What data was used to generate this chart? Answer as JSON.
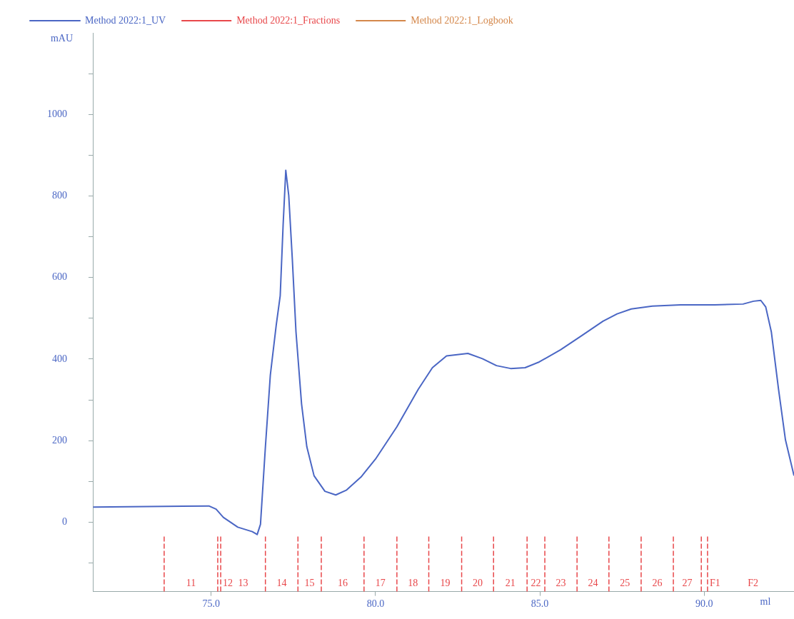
{
  "chart_data": {
    "type": "line",
    "xlabel": "ml",
    "ylabel": "mAU",
    "xlim": [
      71.4,
      92.73
    ],
    "ylim": [
      -170,
      1200
    ],
    "xticks": [
      {
        "value": 75,
        "label": "75.0"
      },
      {
        "value": 80,
        "label": "80.0"
      },
      {
        "value": 85,
        "label": "85.0"
      },
      {
        "value": 90,
        "label": "90.0"
      }
    ],
    "yticks": [
      {
        "value": -100,
        "label": null
      },
      0,
      {
        "value": 100,
        "label": null
      },
      200,
      {
        "value": 300,
        "label": null
      },
      400,
      {
        "value": 500,
        "label": null
      },
      600,
      {
        "value": 700,
        "label": null
      },
      800,
      {
        "value": 900,
        "label": null
      },
      1000,
      {
        "value": 1100,
        "label": null
      }
    ],
    "grid": false,
    "legend": "top",
    "marker": "none",
    "series": [
      {
        "name": "Method 2022:1_UV",
        "color": "#4a66c4",
        "line_style": "solid",
        "x": [
          71.41,
          74.93,
          75.15,
          75.37,
          75.81,
          76.25,
          76.4,
          76.5,
          76.65,
          76.8,
          76.98,
          77.1,
          77.19,
          77.27,
          77.36,
          77.47,
          77.58,
          77.75,
          77.91,
          78.13,
          78.46,
          78.79,
          79.12,
          79.56,
          80.0,
          80.65,
          81.3,
          81.73,
          82.16,
          82.81,
          83.25,
          83.68,
          84.11,
          84.55,
          84.98,
          85.63,
          86.28,
          86.92,
          87.35,
          87.78,
          88.42,
          89.28,
          90.32,
          91.18,
          91.5,
          91.72,
          91.87,
          92.04,
          92.26,
          92.47,
          92.73
        ],
        "values": [
          37,
          40,
          32,
          12,
          -12,
          -23,
          -30,
          -5,
          185,
          361,
          484,
          555,
          731,
          863,
          801,
          643,
          467,
          290,
          185,
          114,
          76,
          67,
          79,
          111,
          155,
          234,
          326,
          379,
          408,
          414,
          401,
          384,
          377,
          379,
          393,
          423,
          458,
          493,
          511,
          523,
          530,
          533,
          533,
          535,
          542,
          544,
          528,
          467,
          326,
          202,
          114
        ]
      },
      {
        "name": "Method 2022:1_Fractions",
        "color": "#e8474a",
        "line_style": "dashed"
      },
      {
        "name": "Method 2022:1_Logbook",
        "color": "#d4874a",
        "line_style": "dashed"
      }
    ],
    "ref_lines": [
      {
        "axis": "x",
        "value": 73.57,
        "color": "#e8474a",
        "line_style": "dashed"
      },
      {
        "axis": "x",
        "value": 75.2,
        "color": "#e8474a",
        "line_style": "dashed"
      },
      {
        "axis": "x",
        "value": 75.29,
        "color": "#e8474a",
        "line_style": "dashed"
      },
      {
        "axis": "x",
        "value": 76.65,
        "color": "#e8474a",
        "line_style": "dashed"
      },
      {
        "axis": "x",
        "value": 77.64,
        "color": "#e8474a",
        "line_style": "dashed"
      },
      {
        "axis": "x",
        "value": 78.35,
        "color": "#e8474a",
        "line_style": "dashed"
      },
      {
        "axis": "x",
        "value": 79.65,
        "color": "#e8474a",
        "line_style": "dashed"
      },
      {
        "axis": "x",
        "value": 80.65,
        "color": "#e8474a",
        "line_style": "dashed"
      },
      {
        "axis": "x",
        "value": 81.62,
        "color": "#e8474a",
        "line_style": "dashed"
      },
      {
        "axis": "x",
        "value": 82.62,
        "color": "#e8474a",
        "line_style": "dashed"
      },
      {
        "axis": "x",
        "value": 83.59,
        "color": "#e8474a",
        "line_style": "dashed"
      },
      {
        "axis": "x",
        "value": 84.61,
        "color": "#e8474a",
        "line_style": "dashed"
      },
      {
        "axis": "x",
        "value": 85.15,
        "color": "#e8474a",
        "line_style": "dashed"
      },
      {
        "axis": "x",
        "value": 86.13,
        "color": "#e8474a",
        "line_style": "dashed"
      },
      {
        "axis": "x",
        "value": 87.1,
        "color": "#e8474a",
        "line_style": "dashed"
      },
      {
        "axis": "x",
        "value": 88.08,
        "color": "#e8474a",
        "line_style": "dashed"
      },
      {
        "axis": "x",
        "value": 89.06,
        "color": "#e8474a",
        "line_style": "dashed"
      },
      {
        "axis": "x",
        "value": 89.91,
        "color": "#e8474a",
        "line_style": "dashed"
      },
      {
        "axis": "x",
        "value": 90.1,
        "color": "#e8474a",
        "line_style": "dashed"
      }
    ],
    "annotations": [
      {
        "text": "11",
        "x": 73.57
      },
      {
        "text": "12",
        "x": 75.2
      },
      {
        "text": "13",
        "x": 75.29
      },
      {
        "text": "14",
        "x": 76.65
      },
      {
        "text": "15",
        "x": 77.64
      },
      {
        "text": "16",
        "x": 78.35
      },
      {
        "text": "17",
        "x": 79.65
      },
      {
        "text": "18",
        "x": 80.65
      },
      {
        "text": "19",
        "x": 81.62
      },
      {
        "text": "20",
        "x": 82.62
      },
      {
        "text": "21",
        "x": 83.59
      },
      {
        "text": "22",
        "x": 84.61
      },
      {
        "text": "23",
        "x": 85.15
      },
      {
        "text": "24",
        "x": 86.13
      },
      {
        "text": "25",
        "x": 87.1
      },
      {
        "text": "26",
        "x": 88.08
      },
      {
        "text": "27",
        "x": 89.06
      },
      {
        "text": "F1",
        "x": 89.91
      },
      "F2"
    ]
  }
}
